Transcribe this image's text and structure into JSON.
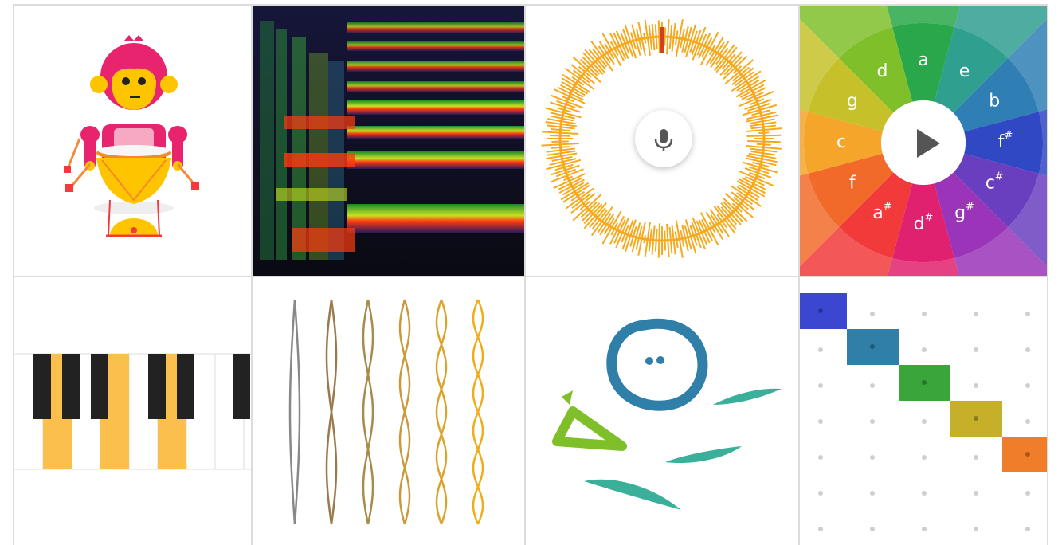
{
  "grid": {
    "tiles": [
      {
        "id": "rhythm",
        "icon": "monkey-drummer-icon"
      },
      {
        "id": "spectrogram",
        "icon": "spectrogram-icon"
      },
      {
        "id": "voice-spinner",
        "icon": "microphone-icon"
      },
      {
        "id": "chord-wheel",
        "icon": "play-icon"
      },
      {
        "id": "piano",
        "icon": "piano-keys-icon"
      },
      {
        "id": "strings",
        "icon": "vibrating-strings-icon"
      },
      {
        "id": "kandinsky",
        "icon": "drawing-face-icon"
      },
      {
        "id": "arpeggios",
        "icon": "grid-sequencer-icon"
      }
    ]
  },
  "chord_wheel": {
    "notes": [
      {
        "label": "a",
        "sup": ""
      },
      {
        "label": "e",
        "sup": ""
      },
      {
        "label": "b",
        "sup": ""
      },
      {
        "label": "f",
        "sup": "#"
      },
      {
        "label": "c",
        "sup": "#"
      },
      {
        "label": "g",
        "sup": "#"
      },
      {
        "label": "d",
        "sup": "#"
      },
      {
        "label": "a",
        "sup": "#"
      },
      {
        "label": "f",
        "sup": ""
      },
      {
        "label": "c",
        "sup": ""
      },
      {
        "label": "g",
        "sup": ""
      },
      {
        "label": "d",
        "sup": ""
      }
    ],
    "colors": [
      "#2aa74a",
      "#2f9f8f",
      "#2f7fb4",
      "#3048c4",
      "#6a3fbf",
      "#9a34b8",
      "#e0216f",
      "#f23a3a",
      "#f26a2a",
      "#f5a52a",
      "#c6c12a",
      "#7fbf2a"
    ]
  },
  "sequencer": {
    "active_cells": [
      {
        "col": 0,
        "row": 0,
        "color": "#3b47d1"
      },
      {
        "col": 1,
        "row": 1,
        "color": "#2f7fa8"
      },
      {
        "col": 2,
        "row": 2,
        "color": "#3aa53a"
      },
      {
        "col": 3,
        "row": 3,
        "color": "#c6b02a"
      },
      {
        "col": 4,
        "row": 4,
        "color": "#f07d2a"
      }
    ]
  }
}
